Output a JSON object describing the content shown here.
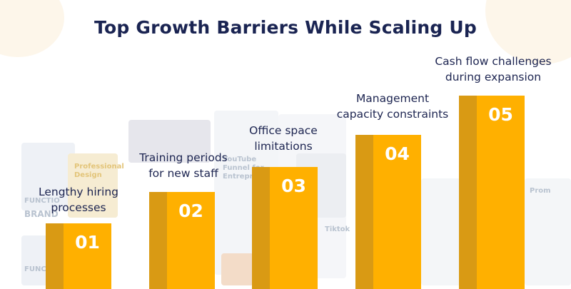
{
  "title": "Top Growth Barriers While Scaling Up",
  "background_text": {
    "t1": "YouTube",
    "t2": "Funnel for",
    "t3": "Entrepreneur",
    "t4": "Professional",
    "t5": "Design",
    "t6": "FUNCTIO",
    "t7": "BRAND",
    "t8": "FUNCTI",
    "t9": "Tiktok",
    "t10": "Prom"
  },
  "steps": [
    {
      "number": "01",
      "label_line1": "Lengthy hiring",
      "label_line2": "processes"
    },
    {
      "number": "02",
      "label_line1": "Training periods",
      "label_line2": "for new staff"
    },
    {
      "number": "03",
      "label_line1": "Office space",
      "label_line2": "limitations"
    },
    {
      "number": "04",
      "label_line1": "Management",
      "label_line2": "capacity constraints"
    },
    {
      "number": "05",
      "label_line1": "Cash flow challenges",
      "label_line2": "during expansion"
    }
  ],
  "colors": {
    "bar": "#ffb000",
    "bar_shade": "#d99a14",
    "title": "#1a2452",
    "label": "#1c2450"
  }
}
